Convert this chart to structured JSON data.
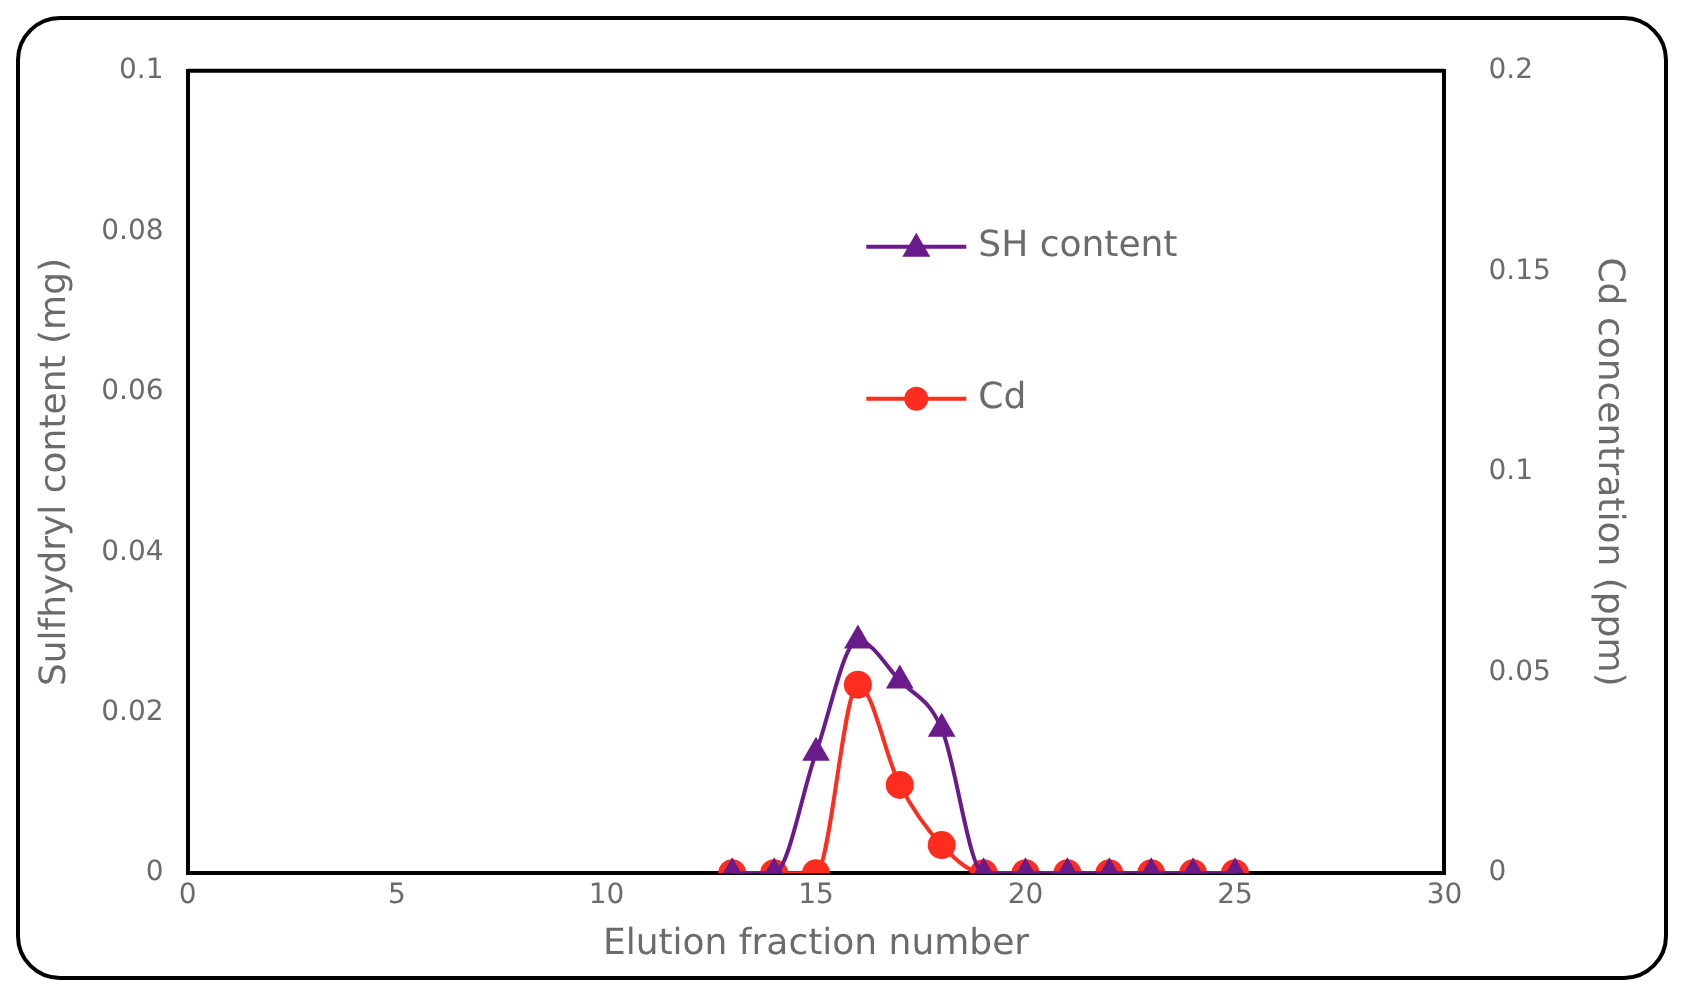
{
  "chart_data": {
    "type": "line",
    "xlabel": "Elution fraction number",
    "ylabel": "Sulfhydryl content (mg)",
    "y2label": "Cd concentration (ppm)",
    "x": [
      13,
      14,
      15,
      16,
      17,
      18,
      19,
      20,
      21,
      22,
      23,
      24,
      25
    ],
    "series": [
      {
        "name": "SH content",
        "color": "#6a1b8a",
        "marker": "triangle",
        "values": [
          0,
          0,
          0.015,
          0.029,
          0.024,
          0.018,
          0,
          0,
          0,
          0,
          0,
          0,
          0
        ]
      },
      {
        "name": "Cd",
        "color": "#ff2d20",
        "marker": "circle",
        "axis": "y2",
        "values": [
          0,
          0,
          0,
          0.047,
          0.022,
          0.007,
          0,
          0,
          0,
          0,
          0,
          0,
          0
        ]
      }
    ],
    "xlim": [
      0,
      30
    ],
    "xticks": [
      0,
      5,
      10,
      15,
      20,
      25,
      30
    ],
    "ylim": [
      0,
      0.1
    ],
    "yticks": [
      0,
      0.02,
      0.04,
      0.06,
      0.08,
      0.1
    ],
    "y2lim": [
      0,
      0.2
    ],
    "y2ticks": [
      0,
      0.05,
      0.1,
      0.15,
      0.2
    ],
    "grid": false,
    "legend": "top"
  }
}
